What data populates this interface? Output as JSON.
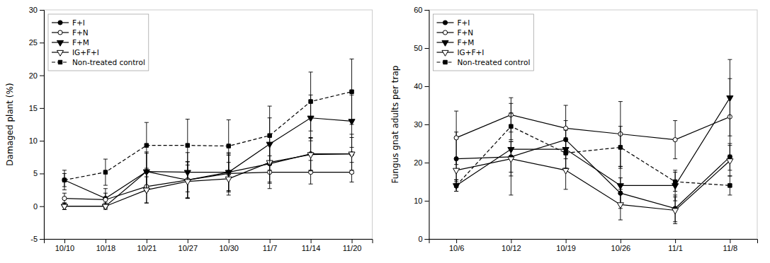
{
  "chart_data": [
    {
      "type": "line",
      "y_label": "Damaged plant (%)",
      "categories": [
        "10/10",
        "10/18",
        "10/21",
        "10/27",
        "10/30",
        "11/7",
        "11/14",
        "11/20"
      ],
      "ylim": [
        -5,
        30
      ],
      "yticks": [
        -5,
        0,
        5,
        10,
        15,
        20,
        25,
        30
      ],
      "grid": false,
      "legend": "upper left",
      "series": [
        {
          "name": "F+I",
          "color": "#000000",
          "marker": "circle",
          "line_style": "solid",
          "values": [
            4.0,
            1.2,
            5.3,
            4.0,
            5.2,
            6.5,
            8.0,
            8.0
          ],
          "yerr": [
            1.0,
            1.5,
            2.8,
            2.8,
            2.8,
            3.0,
            2.5,
            3.0
          ]
        },
        {
          "name": "F+N",
          "color": "#000000",
          "marker": "circle-open",
          "line_style": "solid",
          "values": [
            1.2,
            1.0,
            3.0,
            4.0,
            5.0,
            5.2,
            5.2,
            5.2
          ],
          "yerr": [
            0.8,
            1.0,
            2.5,
            2.8,
            2.8,
            2.5,
            1.8,
            1.5
          ]
        },
        {
          "name": "F+M",
          "color": "#000000",
          "marker": "triangle-down",
          "line_style": "solid",
          "values": [
            0.0,
            0.0,
            5.3,
            5.2,
            5.2,
            9.5,
            13.5,
            13.0
          ],
          "yerr": [
            0.5,
            0.5,
            3.0,
            3.0,
            3.0,
            4.0,
            3.5,
            4.0
          ]
        },
        {
          "name": "IG+F+I",
          "color": "#000000",
          "marker": "triangle-down-open",
          "line_style": "solid",
          "values": [
            0.0,
            0.0,
            2.5,
            3.8,
            4.2,
            6.7,
            7.9,
            8.0
          ],
          "yerr": [
            0.5,
            0.3,
            2.0,
            2.5,
            2.5,
            3.0,
            2.5,
            2.5
          ]
        },
        {
          "name": "Non-treated control",
          "color": "#000000",
          "marker": "square",
          "line_style": "dashed",
          "values": [
            4.0,
            5.2,
            9.3,
            9.3,
            9.2,
            10.8,
            16.0,
            17.5
          ],
          "yerr": [
            1.5,
            2.0,
            3.5,
            4.0,
            4.0,
            4.5,
            4.5,
            5.0
          ]
        }
      ]
    },
    {
      "type": "line",
      "y_label": "Fungus gnat adults per trap",
      "categories": [
        "10/6",
        "10/12",
        "10/19",
        "10/26",
        "11/1",
        "11/8"
      ],
      "ylim": [
        0,
        60
      ],
      "yticks": [
        0,
        10,
        20,
        30,
        40,
        50,
        60
      ],
      "grid": false,
      "legend": "upper left",
      "series": [
        {
          "name": "F+I",
          "color": "#000000",
          "marker": "circle",
          "line_style": "solid",
          "values": [
            21.0,
            21.5,
            26.0,
            12.0,
            8.0,
            21.5
          ],
          "yerr": [
            7.0,
            4.0,
            5.0,
            4.0,
            3.5,
            3.5
          ]
        },
        {
          "name": "F+N",
          "color": "#000000",
          "marker": "circle-open",
          "line_style": "solid",
          "values": [
            26.5,
            32.5,
            29.0,
            27.5,
            26.0,
            32.0
          ],
          "yerr": [
            7.0,
            4.5,
            6.0,
            8.5,
            5.0,
            10.0
          ]
        },
        {
          "name": "F+M",
          "color": "#000000",
          "marker": "triangle-down",
          "line_style": "solid",
          "values": [
            14.0,
            23.5,
            23.5,
            14.0,
            14.0,
            37.0
          ],
          "yerr": [
            1.5,
            12.0,
            5.0,
            5.0,
            4.0,
            10.0
          ]
        },
        {
          "name": "IG+F+I",
          "color": "#000000",
          "marker": "triangle-down-open",
          "line_style": "solid",
          "values": [
            18.0,
            21.0,
            18.0,
            9.0,
            7.5,
            20.5
          ],
          "yerr": [
            3.0,
            4.5,
            5.0,
            4.0,
            3.5,
            4.0
          ]
        },
        {
          "name": "Non-treated control",
          "color": "#000000",
          "marker": "square",
          "line_style": "dashed",
          "values": [
            14.0,
            29.5,
            22.5,
            24.0,
            15.0,
            14.0
          ],
          "yerr": [
            1.5,
            3.5,
            4.0,
            5.5,
            2.5,
            2.5
          ]
        }
      ]
    }
  ]
}
